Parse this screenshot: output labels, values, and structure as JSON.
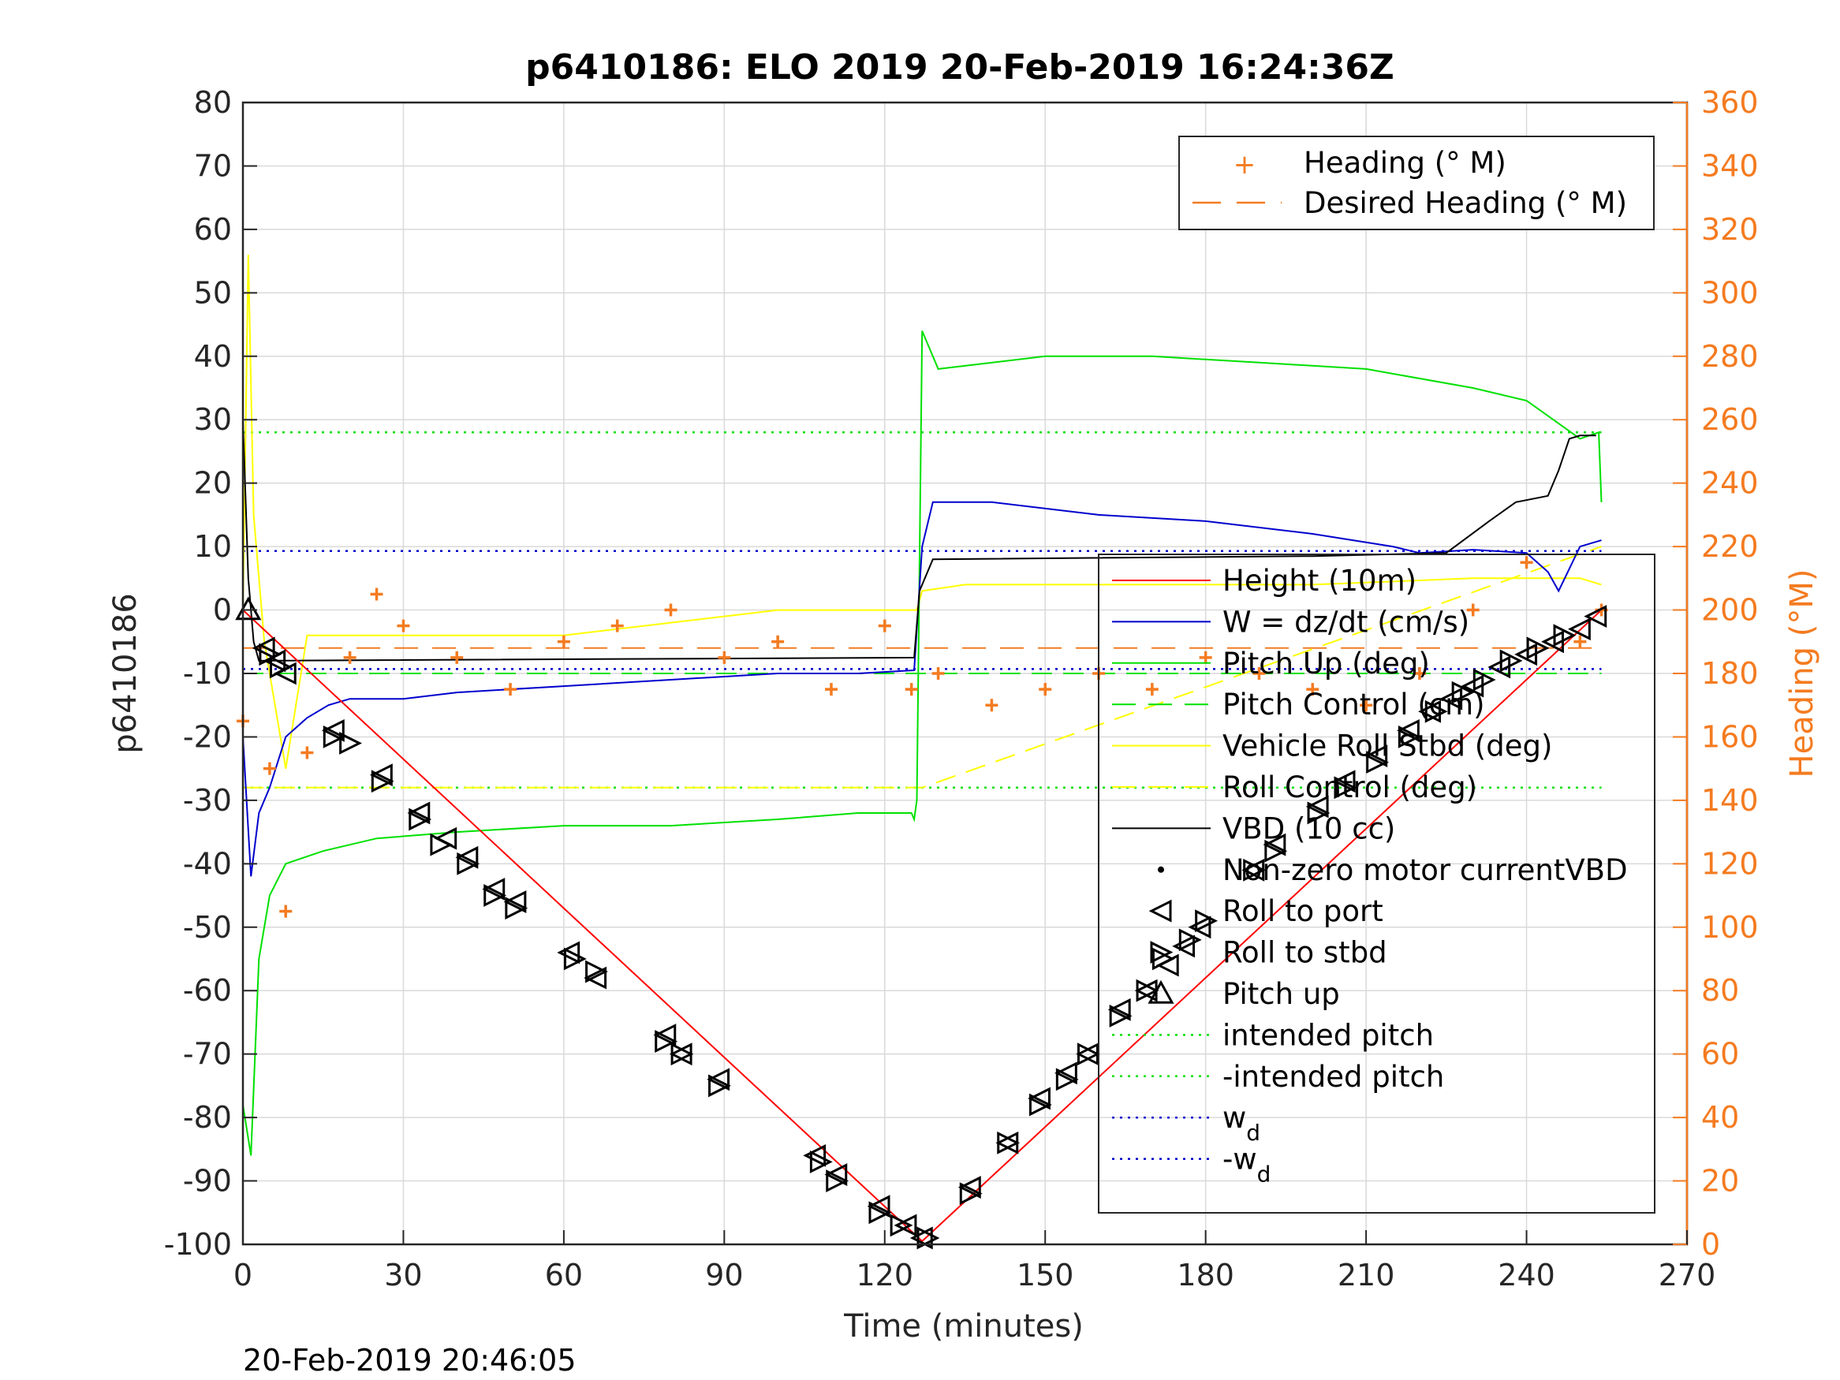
{
  "chart_data": {
    "type": "line",
    "title": "p6410186: ELO 2019 20-Feb-2019 16:24:36Z",
    "xlabel": "Time (minutes)",
    "ylabel": "p6410186",
    "ylabel_right": "Heading (°M)",
    "xlim": [
      0,
      270
    ],
    "ylim": [
      -100,
      80
    ],
    "ylim_right": [
      0,
      360
    ],
    "x_ticks": [
      "0",
      "30",
      "60",
      "90",
      "120",
      "150",
      "180",
      "210",
      "240",
      "270"
    ],
    "y_ticks": [
      "80",
      "70",
      "60",
      "50",
      "40",
      "30",
      "20",
      "10",
      "0",
      "-10",
      "-20",
      "-30",
      "-40",
      "-50",
      "-60",
      "-70",
      "-80",
      "-90",
      "-100"
    ],
    "y_ticks_right": [
      "360",
      "340",
      "320",
      "300",
      "280",
      "260",
      "240",
      "220",
      "200",
      "180",
      "160",
      "140",
      "120",
      "100",
      "80",
      "60",
      "40",
      "20",
      "0"
    ],
    "grid": true,
    "footer_timestamp": "20-Feb-2019 20:46:05",
    "colors": {
      "height": "#ff0000",
      "w": "#0000cd",
      "pitch_up": "#00e000",
      "pitch_control": "#00e000",
      "roll": "#ffff00",
      "vbd": "#000000",
      "heading": "#f47b20",
      "right_axis": "#f47b20"
    },
    "legend_heading": {
      "placement": "top-right",
      "entries": [
        "Heading (° M)",
        "Desired Heading (° M)"
      ]
    },
    "legend_main": {
      "placement": "right",
      "entries": [
        "Height (10m)",
        "W = dz/dt (cm/s)",
        "Pitch Up (deg)",
        "Pitch Control (cm)",
        "Vehicle Roll Stbd (deg)",
        "Roll Control (deg)",
        "VBD (10 cc)",
        "Non-zero motor currentVBD",
        "Roll to port",
        "Roll to stbd",
        "Pitch up",
        "intended pitch",
        "-intended pitch",
        "w",
        "-w"
      ],
      "subscript": "d"
    },
    "series": [
      {
        "name": "Height (10m)",
        "axis": "left",
        "x": [
          0,
          127,
          254
        ],
        "y": [
          0,
          -99.5,
          0
        ]
      },
      {
        "name": "W = dz/dt (cm/s)",
        "axis": "left",
        "x": [
          0,
          1.5,
          3,
          5,
          8,
          12,
          16,
          20,
          30,
          40,
          60,
          80,
          100,
          115,
          125.5,
          127,
          129,
          140,
          160,
          180,
          200,
          215,
          220,
          230,
          240,
          244,
          246,
          250,
          254
        ],
        "y": [
          -20,
          -42,
          -32,
          -28,
          -20,
          -17,
          -15,
          -14,
          -14,
          -13,
          -12,
          -11,
          -10,
          -10,
          -9.5,
          10,
          17,
          17,
          15,
          14,
          12,
          10,
          9,
          9.5,
          9,
          6,
          3,
          10,
          11
        ]
      },
      {
        "name": "Pitch Up (deg)",
        "axis": "left",
        "x": [
          0,
          1.5,
          3,
          5,
          8,
          15,
          25,
          40,
          60,
          80,
          100,
          115,
          125,
          125.5,
          126,
          127,
          130,
          150,
          170,
          190,
          210,
          230,
          240,
          245,
          250,
          253.5,
          254
        ],
        "y": [
          -78,
          -86,
          -55,
          -45,
          -40,
          -38,
          -36,
          -35,
          -34,
          -34,
          -33,
          -32,
          -32,
          -33,
          -30,
          44,
          38,
          40,
          40,
          39,
          38,
          35,
          33,
          30,
          27,
          28,
          17
        ]
      },
      {
        "name": "Pitch Control (cm)",
        "axis": "left",
        "x": [
          0,
          254
        ],
        "y": [
          -10,
          -10
        ]
      },
      {
        "name": "Vehicle Roll Stbd (deg)",
        "axis": "left",
        "x": [
          0,
          1,
          2,
          4,
          8,
          12,
          25,
          60,
          100,
          126,
          127,
          135,
          170,
          200,
          230,
          250,
          254
        ],
        "y": [
          0,
          56,
          15,
          -5,
          -25,
          -4,
          -4,
          -4,
          0,
          0,
          3,
          4,
          4,
          4,
          5,
          5,
          4
        ]
      },
      {
        "name": "Roll Control (deg)",
        "axis": "left",
        "x": [
          0,
          127,
          254
        ],
        "y": [
          -28,
          -28,
          10
        ]
      },
      {
        "name": "VBD (10 cc)",
        "axis": "left",
        "x": [
          0,
          1,
          2,
          3,
          125.5,
          126.5,
          129,
          200,
          225,
          233,
          238,
          244,
          246,
          248,
          250,
          253
        ],
        "y": [
          30,
          5,
          -5,
          -8,
          -7.5,
          3,
          8,
          8.5,
          9,
          14,
          17,
          18,
          22,
          27,
          27.5,
          27.5
        ]
      },
      {
        "name": "Heading (° M)",
        "axis": "right",
        "x": [
          0,
          5,
          8,
          12,
          20,
          25,
          30,
          40,
          50,
          60,
          70,
          80,
          90,
          100,
          110,
          120,
          125,
          130,
          140,
          150,
          160,
          170,
          180,
          190,
          200,
          210,
          220,
          230,
          240,
          250,
          254
        ],
        "y": [
          165,
          150,
          105,
          155,
          185,
          205,
          195,
          185,
          175,
          190,
          195,
          200,
          185,
          190,
          175,
          195,
          175,
          180,
          170,
          175,
          180,
          175,
          185,
          180,
          175,
          170,
          180,
          200,
          215,
          190,
          200
        ]
      },
      {
        "name": "Desired Heading (° M)",
        "axis": "right",
        "x": [
          0,
          254
        ],
        "y": [
          188,
          188
        ]
      },
      {
        "name": "intended pitch",
        "axis": "left",
        "x": [
          0,
          254
        ],
        "y": [
          28,
          28
        ]
      },
      {
        "name": "-intended pitch",
        "axis": "left",
        "x": [
          0,
          254
        ],
        "y": [
          -28,
          -28
        ]
      },
      {
        "name": "w_d",
        "axis": "left",
        "x": [
          0,
          254
        ],
        "y": [
          9.3,
          9.3
        ]
      },
      {
        "name": "-w_d",
        "axis": "left",
        "x": [
          0,
          254
        ],
        "y": [
          -9.3,
          -9.3
        ]
      },
      {
        "name": "Roll to port",
        "axis": "left",
        "x": [
          4,
          6,
          8,
          17,
          26,
          33,
          38,
          42,
          47,
          51,
          61,
          66,
          79,
          82,
          89,
          107,
          111,
          119,
          124,
          127,
          136,
          143,
          149,
          154,
          158,
          164,
          169,
          173,
          176,
          179,
          189,
          193,
          201,
          206,
          212,
          218,
          222,
          226,
          230,
          235,
          240,
          245,
          250,
          253
        ],
        "y": [
          -6,
          -8,
          -10,
          -19,
          -26,
          -32,
          -36,
          -39,
          -44,
          -46,
          -54,
          -58,
          -67,
          -70,
          -74,
          -86,
          -89,
          -94,
          -97,
          -99,
          -91,
          -84,
          -77,
          -73,
          -70,
          -63,
          -60,
          -56,
          -53,
          -50,
          -41,
          -37,
          -31,
          -27,
          -23,
          -19,
          -16,
          -14,
          -12,
          -9,
          -7,
          -5,
          -3,
          -1
        ]
      },
      {
        "name": "Roll to stbd",
        "axis": "left",
        "x": [
          5,
          7,
          17,
          20,
          26,
          33,
          37,
          42,
          47,
          51,
          62,
          66,
          79,
          82,
          89,
          108,
          111,
          119,
          123,
          128,
          136,
          143,
          149,
          154,
          158,
          164,
          169,
          172,
          177,
          180,
          189,
          193,
          201,
          206,
          212,
          218,
          223,
          228,
          232,
          237,
          242,
          247
        ],
        "y": [
          -7,
          -9,
          -20,
          -21,
          -27,
          -33,
          -37,
          -40,
          -45,
          -47,
          -55,
          -57,
          -68,
          -70,
          -75,
          -87,
          -90,
          -95,
          -97,
          -99,
          -92,
          -84,
          -78,
          -74,
          -70,
          -64,
          -60,
          -55,
          -52,
          -49,
          -41,
          -38,
          -32,
          -28,
          -24,
          -20,
          -16,
          -13,
          -11,
          -8,
          -6,
          -4
        ]
      },
      {
        "name": "Pitch up",
        "axis": "left",
        "x": [
          1
        ],
        "y": [
          0
        ]
      }
    ]
  }
}
